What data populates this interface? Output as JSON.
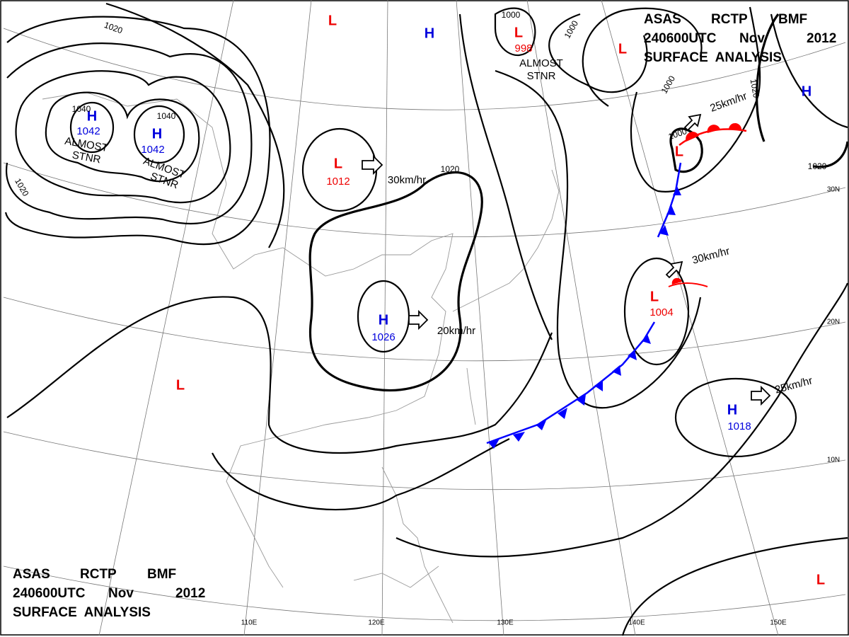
{
  "header": {
    "line1": [
      "ASAS",
      "RCTP",
      "BMF"
    ],
    "line2": [
      "240600UTC",
      "Nov",
      "2012"
    ],
    "line3": "SURFACE  ANALYSIS"
  },
  "systems": [
    {
      "symbol": "H",
      "pressure": 1042
    },
    {
      "symbol": "H",
      "pressure": 1042
    },
    {
      "symbol": "L",
      "pressure": 1012
    },
    {
      "symbol": "H",
      "pressure": 1026
    },
    {
      "symbol": "L",
      "pressure": 998
    },
    {
      "symbol": "L",
      "pressure": 1004
    },
    {
      "symbol": "H",
      "pressure": 1018
    },
    {
      "symbol": "L"
    },
    {
      "symbol": "H"
    },
    {
      "symbol": "H"
    },
    {
      "symbol": "L"
    },
    {
      "symbol": "L"
    },
    {
      "symbol": "L"
    },
    {
      "symbol": "L"
    }
  ],
  "motion_labels": [
    "30km/hr",
    "20km/hr",
    "25km/hr",
    "30km/hr",
    "25km/hr"
  ],
  "isobar_labels": [
    1020,
    1040,
    1040,
    1020,
    1020,
    1000,
    1000,
    1000,
    1020,
    1020,
    1000
  ],
  "notes": [
    [
      "ALMOST",
      "STNR"
    ],
    [
      "ALMOST",
      "STNR"
    ],
    [
      "ALMOST",
      "STNR"
    ]
  ],
  "longitudes": [
    "110E",
    "120E",
    "130E",
    "140E",
    "150E"
  ],
  "latitudes": [
    "30N",
    "20N",
    "10N"
  ]
}
